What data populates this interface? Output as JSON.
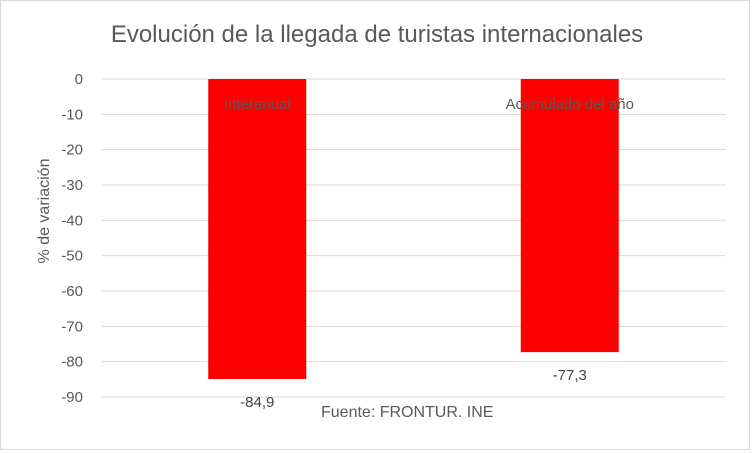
{
  "chart_data": {
    "type": "bar",
    "title": "Evolución de la llegada de turistas internacionales",
    "ylabel": "% de variación",
    "xlabel": "",
    "categories": [
      "Interanual",
      "Acumulado del año"
    ],
    "values": [
      -84.9,
      -77.3
    ],
    "value_labels": [
      "-84,9",
      "-77,3"
    ],
    "ylim": [
      -90,
      0
    ],
    "yticks": [
      0,
      -10,
      -20,
      -30,
      -40,
      -50,
      -60,
      -70,
      -80,
      -90
    ],
    "grid": true,
    "bar_color": "#ff0000",
    "source": "Fuente: FRONTUR. INE"
  }
}
